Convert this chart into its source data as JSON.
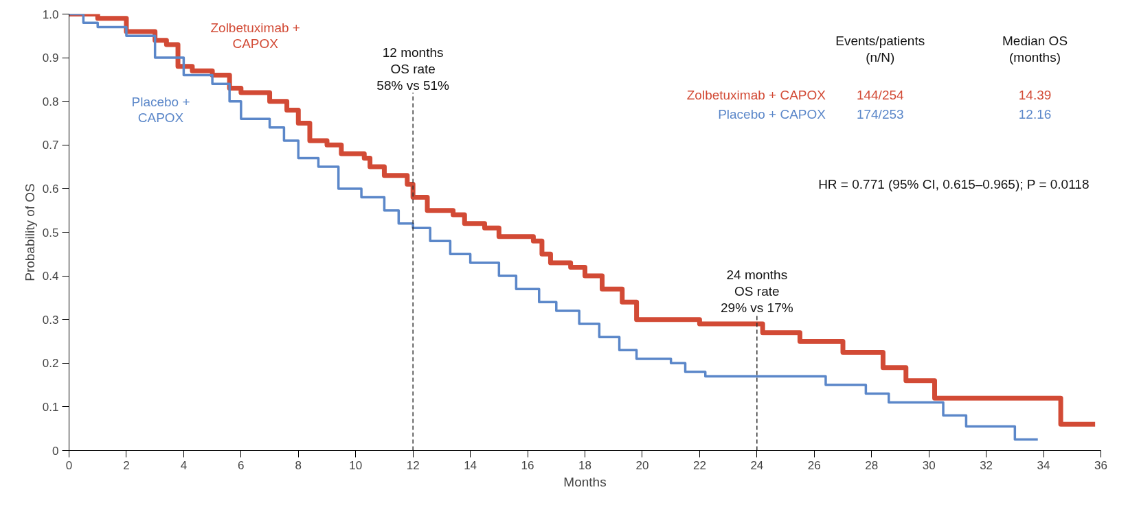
{
  "chart_data": {
    "type": "step",
    "xlabel": "Months",
    "ylabel": "Probability of OS",
    "xlim": [
      0,
      36
    ],
    "ylim": [
      0,
      1.0
    ],
    "xticks": [
      0,
      2,
      4,
      6,
      8,
      10,
      12,
      14,
      16,
      18,
      20,
      22,
      24,
      26,
      28,
      30,
      32,
      34,
      36
    ],
    "yticks": [
      0,
      0.1,
      0.2,
      0.3,
      0.4,
      0.5,
      0.6,
      0.7,
      0.8,
      0.9,
      {
        "value": 1.0,
        "label": "1.0"
      }
    ],
    "grid": false,
    "line_style": "solid",
    "series": [
      {
        "name": "Zolbetuximab +\nCAPOX",
        "color": "#d24a35",
        "x": [
          0,
          1,
          2,
          3,
          3.4,
          3.8,
          4.3,
          5,
          5.6,
          6,
          7,
          7.6,
          8,
          8.4,
          9,
          9.5,
          10.3,
          10.5,
          11,
          11.8,
          12,
          12.5,
          13.4,
          13.8,
          14.5,
          15,
          16.2,
          16.5,
          16.8,
          17.5,
          18,
          18.6,
          19.3,
          19.8,
          22,
          24.2,
          25.5,
          27,
          28.4,
          29.2,
          30.2,
          34.6,
          35.8
        ],
        "values": [
          1.0,
          0.99,
          0.96,
          0.94,
          0.93,
          0.88,
          0.87,
          0.86,
          0.83,
          0.82,
          0.8,
          0.78,
          0.75,
          0.71,
          0.7,
          0.68,
          0.67,
          0.65,
          0.63,
          0.61,
          0.58,
          0.55,
          0.54,
          0.52,
          0.51,
          0.49,
          0.48,
          0.45,
          0.43,
          0.42,
          0.4,
          0.37,
          0.34,
          0.3,
          0.29,
          0.27,
          0.25,
          0.225,
          0.19,
          0.16,
          0.12,
          0.06,
          0.06
        ]
      },
      {
        "name": "Placebo +\nCAPOX",
        "color": "#5b87c9",
        "x": [
          0,
          0.5,
          1,
          2,
          3,
          4,
          5,
          5.6,
          6,
          7,
          7.5,
          8,
          8.7,
          9.4,
          10.2,
          11,
          11.5,
          12,
          12.6,
          13.3,
          14,
          15,
          15.6,
          16.4,
          17,
          17.8,
          18.5,
          19.2,
          19.8,
          21,
          21.5,
          22.2,
          26.4,
          27.8,
          28.6,
          30.5,
          31.3,
          33.0,
          33.8
        ],
        "values": [
          1.0,
          0.98,
          0.97,
          0.95,
          0.9,
          0.86,
          0.84,
          0.8,
          0.76,
          0.74,
          0.71,
          0.67,
          0.65,
          0.6,
          0.58,
          0.55,
          0.52,
          0.51,
          0.48,
          0.45,
          0.43,
          0.4,
          0.37,
          0.34,
          0.32,
          0.29,
          0.26,
          0.23,
          0.21,
          0.2,
          0.18,
          0.17,
          0.15,
          0.13,
          0.11,
          0.08,
          0.055,
          0.025,
          0.025
        ]
      }
    ],
    "ref_lines": [
      {
        "axis": "x",
        "value": 12,
        "line_style": "dashed",
        "color": "#333333"
      },
      {
        "axis": "x",
        "value": 24,
        "line_style": "dashed",
        "color": "#333333"
      }
    ],
    "annotations": [
      {
        "text": "12 months\nOS rate\n58% vs 51%",
        "x": 12,
        "y": 0.82
      },
      {
        "text": "24 months\nOS rate\n29% vs 17%",
        "x": 24,
        "y": 0.31
      },
      "Events/patients\n(n/N)",
      "Median OS\n(months)",
      "Zolbetuximab + CAPOX",
      "144/254",
      "14.39",
      "Placebo + CAPOX",
      "174/253",
      "12.16",
      "HR = 0.771 (95% CI, 0.615–0.965); P = 0.0118"
    ]
  }
}
